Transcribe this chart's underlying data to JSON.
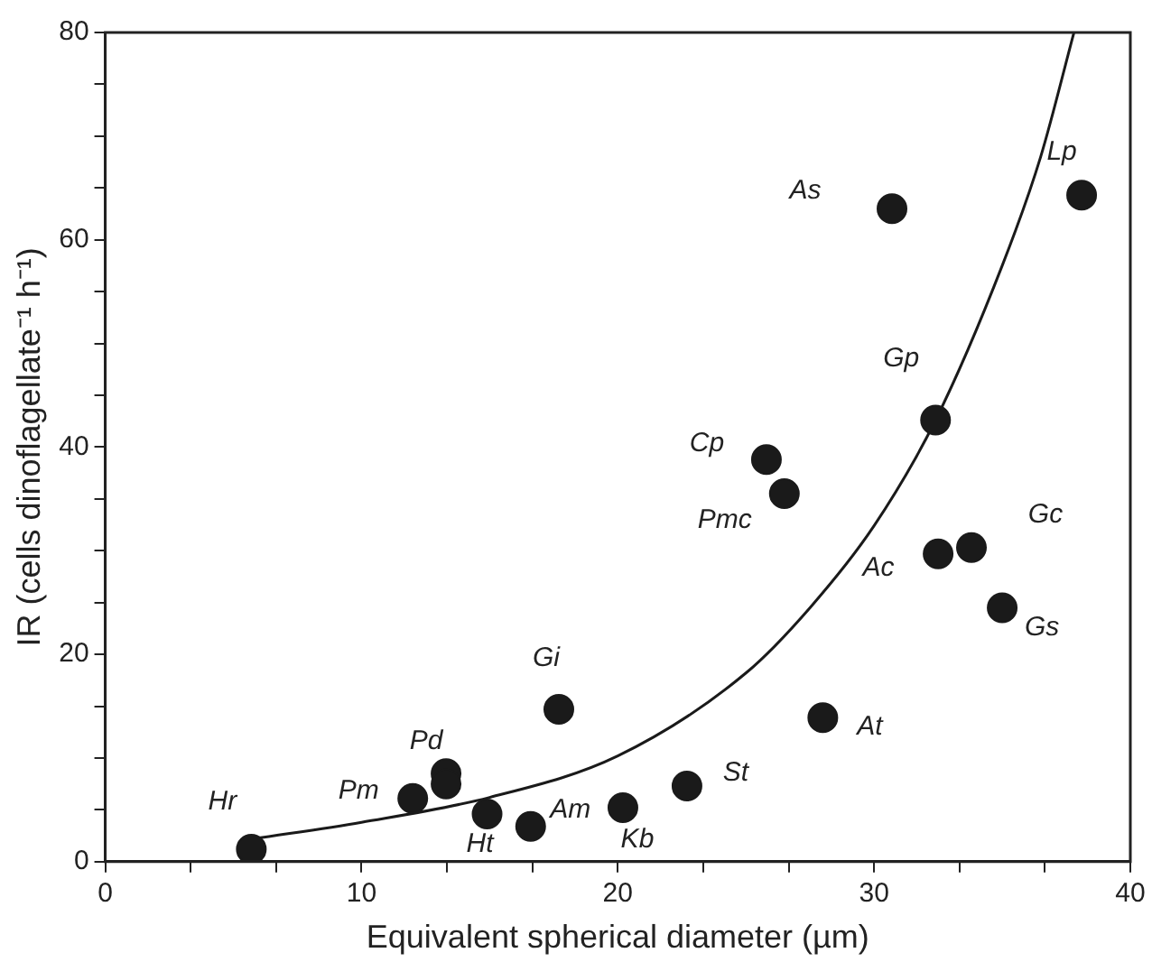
{
  "chart_data": {
    "type": "scatter",
    "xlabel": "Equivalent spherical diameter (µm)",
    "ylabel": "IR (cells dinoflagellate⁻¹ h⁻¹)",
    "xlim": [
      0,
      40
    ],
    "ylim": [
      0,
      80
    ],
    "xticks": [
      0,
      {
        "value": 3.33,
        "label": null
      },
      {
        "value": 6.67,
        "label": null
      },
      10,
      {
        "value": 13.33,
        "label": null
      },
      {
        "value": 16.67,
        "label": null
      },
      20,
      {
        "value": 23.33,
        "label": null
      },
      {
        "value": 26.67,
        "label": null
      },
      30,
      {
        "value": 33.33,
        "label": null
      },
      {
        "value": 36.67,
        "label": null
      },
      40
    ],
    "yticks": [
      0,
      {
        "value": 5,
        "label": null
      },
      {
        "value": 10,
        "label": null
      },
      {
        "value": 15,
        "label": null
      },
      20,
      {
        "value": 25,
        "label": null
      },
      {
        "value": 30,
        "label": null
      },
      {
        "value": 35,
        "label": null
      },
      40,
      {
        "value": 45,
        "label": null
      },
      {
        "value": 50,
        "label": null
      },
      {
        "value": 55,
        "label": null
      },
      60,
      {
        "value": 65,
        "label": null
      },
      {
        "value": 70,
        "label": null
      },
      {
        "value": 75,
        "label": null
      },
      80
    ],
    "grid": false,
    "legend": false,
    "marker": "circle",
    "series": [
      {
        "type": "scatter",
        "color": "#1a1a1a",
        "x": [
          5.7,
          12.0,
          13.3,
          13.3,
          14.9,
          16.6,
          17.7,
          20.2,
          22.7,
          28.0,
          25.8,
          26.5,
          30.7,
          32.4,
          32.5,
          33.8,
          35.0,
          38.1
        ],
        "values": [
          1.2,
          6.1,
          8.5,
          7.5,
          4.6,
          3.4,
          14.7,
          5.2,
          7.3,
          13.9,
          38.8,
          35.5,
          63.0,
          42.6,
          29.7,
          30.3,
          24.5,
          64.3
        ]
      },
      {
        "type": "line",
        "color": "#1a1a1a",
        "marker": "none",
        "x": [
          5.8,
          10,
          15,
          20,
          25,
          27.5,
          30,
          32.4,
          35,
          36.5,
          37.8
        ],
        "values": [
          2.2,
          3.8,
          6.2,
          10.2,
          18.2,
          24.5,
          32.4,
          42.6,
          57.5,
          68,
          80
        ]
      }
    ],
    "annotations": [
      {
        "text": "Hr",
        "x": 5.7,
        "y": 1.2
      },
      {
        "text": "Pm",
        "x": 12.0,
        "y": 6.1
      },
      {
        "text": "Pd",
        "x": 13.3,
        "y": 8.5
      },
      {
        "text": "Ht",
        "x": 14.9,
        "y": 4.6
      },
      {
        "text": "Am",
        "x": 16.6,
        "y": 3.4
      },
      {
        "text": "Kb",
        "x": 20.2,
        "y": 5.2
      },
      {
        "text": "St",
        "x": 22.7,
        "y": 7.3
      },
      {
        "text": "Gi",
        "x": 17.7,
        "y": 14.7
      },
      {
        "text": "At",
        "x": 28.0,
        "y": 13.9
      },
      {
        "text": "Cp",
        "x": 25.8,
        "y": 38.8
      },
      {
        "text": "Pmc",
        "x": 26.5,
        "y": 35.5
      },
      {
        "text": "As",
        "x": 30.7,
        "y": 63.0
      },
      {
        "text": "Gp",
        "x": 32.4,
        "y": 42.6
      },
      {
        "text": "Ac",
        "x": 32.5,
        "y": 29.7
      },
      {
        "text": "Gc",
        "x": 33.8,
        "y": 30.3
      },
      {
        "text": "Gs",
        "x": 35.0,
        "y": 24.5
      },
      {
        "text": "Lp",
        "x": 38.1,
        "y": 64.3
      }
    ]
  }
}
